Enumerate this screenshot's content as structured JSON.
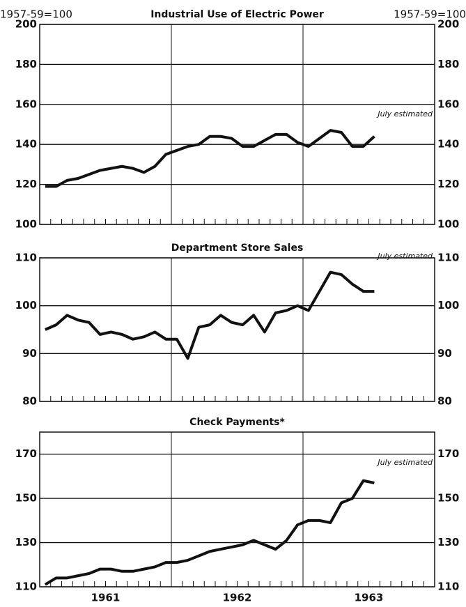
{
  "chart_data": [
    {
      "type": "line",
      "title": "Industrial Use of Electric Power",
      "y_label_left": "1957-59=100",
      "y_label_right": "1957-59=100",
      "annotation": "July estimated",
      "color": "#111111",
      "grid": true,
      "ylim": [
        100,
        200
      ],
      "yticks": [
        100,
        120,
        140,
        160,
        180,
        200
      ],
      "values": [
        119,
        119,
        122,
        123,
        125,
        127,
        128,
        129,
        128,
        126,
        129,
        135,
        137,
        139,
        140,
        144,
        144,
        143,
        139,
        139,
        142,
        145,
        145,
        141,
        139,
        143,
        147,
        146,
        139,
        139,
        144
      ]
    },
    {
      "type": "line",
      "title": "Department Store Sales",
      "annotation": "July estimated",
      "color": "#111111",
      "grid": true,
      "ylim": [
        80,
        110
      ],
      "yticks": [
        80,
        90,
        100,
        110
      ],
      "values": [
        95,
        96,
        98,
        97,
        96.5,
        94,
        94.5,
        94,
        93,
        93.5,
        94.5,
        93,
        93,
        89,
        95.5,
        96,
        98,
        96.5,
        96,
        98,
        94.5,
        98.5,
        99,
        100,
        99,
        103,
        107,
        106.5,
        104.5,
        103,
        103
      ]
    },
    {
      "type": "line",
      "title": "Check Payments*",
      "annotation": "July estimated",
      "color": "#111111",
      "grid": true,
      "ylim": [
        110,
        180
      ],
      "yticks": [
        110,
        130,
        150,
        170
      ],
      "x_labels": [
        "1961",
        "1962",
        "1963"
      ],
      "values": [
        111,
        114,
        114,
        115,
        116,
        118,
        118,
        117,
        117,
        118,
        119,
        121,
        121,
        122,
        124,
        126,
        127,
        128,
        129,
        131,
        129,
        127,
        131,
        138,
        140,
        140,
        139,
        148,
        150,
        158,
        157
      ]
    }
  ]
}
